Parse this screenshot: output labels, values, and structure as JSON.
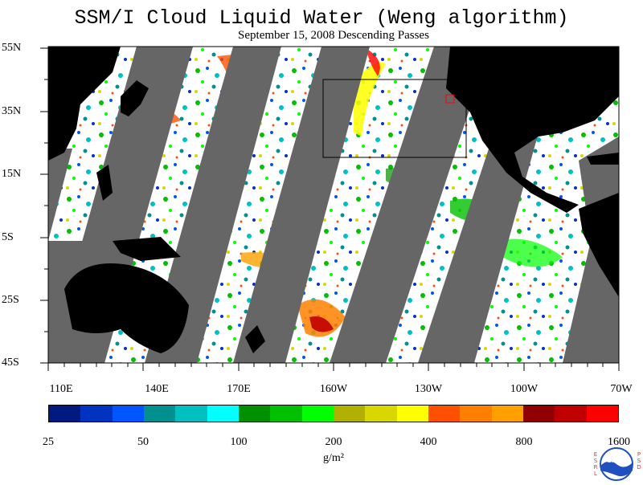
{
  "map": {
    "title": "SSM/I Cloud Liquid Water (Weng algorithm)",
    "subtitle": "September 15, 2008  Descending Passes",
    "lat_labels": [
      "55N",
      "35N",
      "15N",
      "5S",
      "25S",
      "45S"
    ],
    "lon_labels": [
      "110E",
      "140E",
      "170E",
      "160W",
      "130W",
      "100W",
      "70W"
    ],
    "colorbar": {
      "labels": [
        "25",
        "50",
        "100",
        "200",
        "400",
        "800",
        "1600"
      ],
      "unit": "g/m²",
      "colors": [
        "#001a80",
        "#0033c0",
        "#0055ff",
        "#009090",
        "#00c0c0",
        "#00ffff",
        "#009000",
        "#00c000",
        "#00ff00",
        "#b0b000",
        "#d8d800",
        "#ffff00",
        "#ff5000",
        "#ff8000",
        "#ffa000",
        "#900000",
        "#c00000",
        "#ff0000"
      ]
    },
    "colors": {
      "no_data": "#666666",
      "land": "#000000",
      "ocean_clear": "#ffffff"
    },
    "logo": {
      "left_text": "ESRL",
      "right_text": "PSD",
      "center_text": "NOAA"
    }
  }
}
